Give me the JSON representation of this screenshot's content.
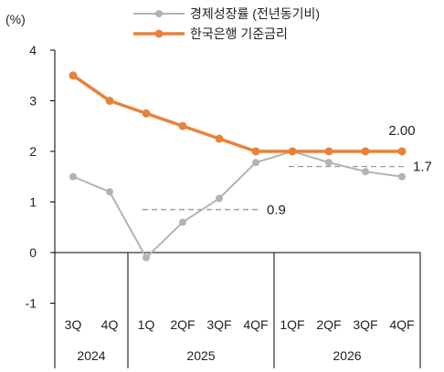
{
  "chart_data": {
    "type": "line",
    "yunit": "(%)",
    "ylim": [
      -1,
      4
    ],
    "yticks": [
      "4",
      "3",
      "2",
      "1",
      "0",
      "-1"
    ],
    "x": [
      "3Q",
      "4Q",
      "1Q",
      "2QF",
      "3QF",
      "4QF",
      "1QF",
      "2QF",
      "3QF",
      "4QF"
    ],
    "year_groups": [
      {
        "label": "2024",
        "span": 2
      },
      {
        "label": "2025",
        "span": 4
      },
      {
        "label": "2026",
        "span": 4
      }
    ],
    "series": [
      {
        "name": "경제성장률 (전년동기비)",
        "color": "#b3b3b3",
        "values": [
          1.5,
          1.2,
          -0.1,
          0.6,
          1.07,
          1.78,
          2.0,
          1.78,
          1.6,
          1.5
        ]
      },
      {
        "name": "한국은행 기준금리",
        "color": "#e8823a",
        "values": [
          3.5,
          3.0,
          2.75,
          2.5,
          2.25,
          2.0,
          2.0,
          2.0,
          2.0,
          2.0
        ]
      }
    ],
    "reference_lines": [
      {
        "label": "0.9",
        "value": 0.85,
        "from": 2,
        "to": 5
      },
      {
        "label": "1.7",
        "value": 1.7,
        "from": 6,
        "to": 9
      }
    ],
    "end_label": "2.00",
    "grid": false,
    "legend_position": "top"
  }
}
